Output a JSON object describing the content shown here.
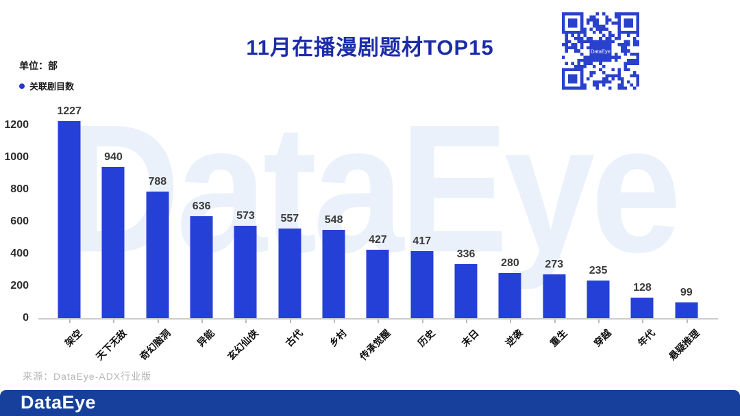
{
  "header": {
    "title": "11月在播漫剧题材TOP15",
    "unit_label": "单位：部",
    "legend_label": "关联剧目数"
  },
  "qr": {
    "center_text": "DataEye"
  },
  "watermark_text": "DataEye",
  "source_text": "来源：DataEye-ADX行业版",
  "footer": {
    "logo_text": "DataEye"
  },
  "colors": {
    "bar": "#2540d6",
    "title": "#1c2da9",
    "legend_dot": "#2337d0",
    "footer_bar": "#16409b",
    "qr_blue": "#2941cc",
    "axis_line": "#cccccc",
    "value_label": "#3a3a3a",
    "source_text": "#b5b5b5"
  },
  "chart_data": {
    "type": "bar",
    "title": "11月在播漫剧题材TOP15",
    "unit": "部",
    "series_name": "关联剧目数",
    "categories": [
      "架空",
      "天下无敌",
      "奇幻脑洞",
      "异能",
      "玄幻仙侠",
      "古代",
      "乡村",
      "传承觉醒",
      "历史",
      "末日",
      "逆袭",
      "重生",
      "穿越",
      "年代",
      "悬疑推理"
    ],
    "values": [
      1227,
      940,
      788,
      636,
      573,
      557,
      548,
      427,
      417,
      336,
      280,
      273,
      235,
      128,
      99
    ],
    "xlabel": "",
    "ylabel": "",
    "yticks": [
      0,
      200,
      400,
      600,
      800,
      1000,
      1200
    ],
    "ylim": [
      0,
      1240
    ],
    "grid": false,
    "legend_position": "top-left"
  }
}
